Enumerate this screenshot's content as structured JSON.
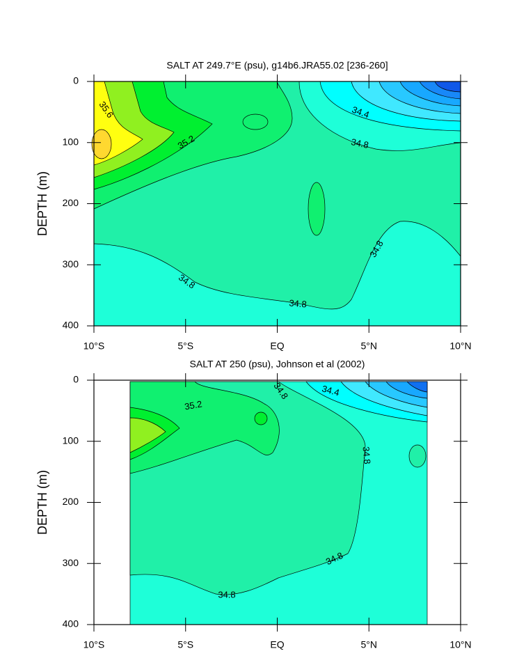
{
  "chart_data": [
    {
      "type": "contour",
      "title": "SALT AT 249.7°E (psu), g14b6.JRA55.02 [236-260]",
      "ylabel": "DEPTH (m)",
      "xlim": [
        -10,
        10
      ],
      "xticks": [
        {
          "value": -10,
          "label": "10°S"
        },
        {
          "value": -5,
          "label": "5°S"
        },
        {
          "value": 0,
          "label": "EQ"
        },
        {
          "value": 5,
          "label": "5°N"
        },
        {
          "value": 10,
          "label": "10°N"
        }
      ],
      "ylim": [
        0,
        400
      ],
      "yticks": [
        0,
        100,
        200,
        300,
        400
      ],
      "y_inverted": true,
      "contour_labels": [
        35.6,
        35.2,
        34.4,
        34.8,
        34.8,
        34.8,
        34.8
      ]
    },
    {
      "type": "contour",
      "title": "SALT AT 250 (psu), Johnson et al (2002)",
      "ylabel": "DEPTH (m)",
      "xlim": [
        -10,
        10
      ],
      "xticks": [
        {
          "value": -10,
          "label": "10°S"
        },
        {
          "value": -5,
          "label": "5°S"
        },
        {
          "value": 0,
          "label": "EQ"
        },
        {
          "value": 5,
          "label": "5°N"
        },
        {
          "value": 10,
          "label": "10°N"
        }
      ],
      "ylim": [
        0,
        400
      ],
      "yticks": [
        0,
        100,
        200,
        300,
        400
      ],
      "y_inverted": true,
      "contour_labels": [
        35.2,
        34.8,
        34.4,
        34.8,
        34.8,
        34.8
      ]
    }
  ]
}
